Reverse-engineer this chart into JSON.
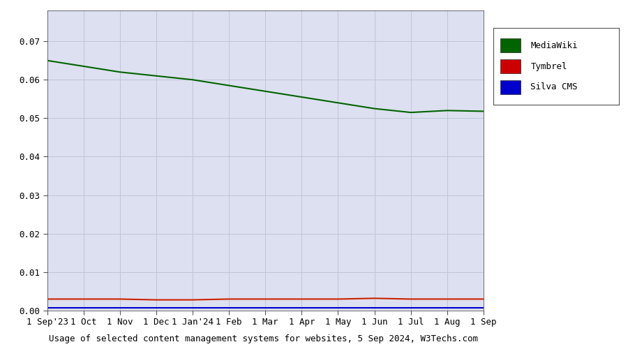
{
  "title": "Usage of selected content management systems for websites, 5 Sep 2024, W3Techs.com",
  "legend_labels": [
    "MediaWiki",
    "Tymbrel",
    "Silva CMS"
  ],
  "legend_colors": [
    "#006400",
    "#cc0000",
    "#0000cc"
  ],
  "line_colors": [
    "#006400",
    "#cc2200",
    "#0000cc"
  ],
  "background_color": "#dde0f0",
  "outer_bg_color": "#ffffff",
  "ylim": [
    0,
    0.078
  ],
  "yticks": [
    0,
    0.01,
    0.02,
    0.03,
    0.04,
    0.05,
    0.06,
    0.07
  ],
  "xtick_labels": [
    "1 Sep'23",
    "1 Oct",
    "1 Nov",
    "1 Dec",
    "1 Jan'24",
    "1 Feb",
    "1 Mar",
    "1 Apr",
    "1 May",
    "1 Jun",
    "1 Jul",
    "1 Aug",
    "1 Sep"
  ],
  "mediawiki_values": [
    0.065,
    0.0635,
    0.062,
    0.061,
    0.06,
    0.0585,
    0.057,
    0.0555,
    0.054,
    0.0525,
    0.0515,
    0.052,
    0.0518
  ],
  "tymbrel_values": [
    0.003,
    0.003,
    0.003,
    0.0028,
    0.0028,
    0.003,
    0.003,
    0.003,
    0.003,
    0.0032,
    0.003,
    0.003,
    0.003
  ],
  "silva_values": [
    0.0008,
    0.0008,
    0.0008,
    0.0008,
    0.0008,
    0.0008,
    0.0008,
    0.0008,
    0.0008,
    0.0008,
    0.0008,
    0.0008,
    0.0008
  ],
  "grid_color": "#c0c4d8",
  "font_family": "monospace",
  "font_size": 9,
  "title_font_size": 9
}
